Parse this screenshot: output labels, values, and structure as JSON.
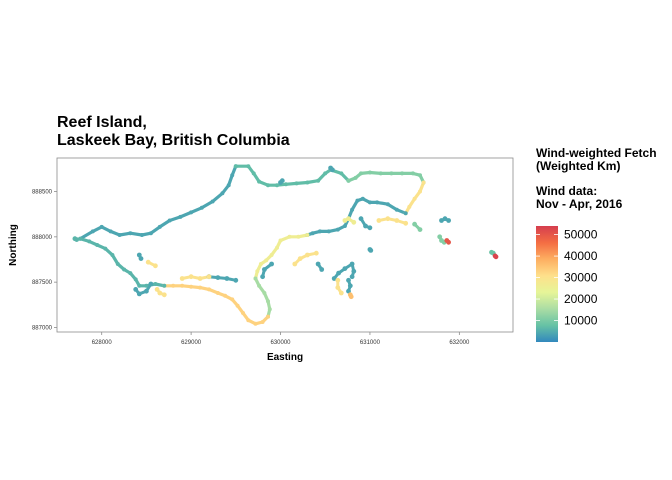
{
  "chart_data": {
    "type": "scatter",
    "title_line1": "Reef Island,",
    "title_line2": "Laskeek Bay, British Columbia",
    "xlabel": "Easting",
    "ylabel": "Northing",
    "xlim": [
      627500,
      632600
    ],
    "ylim": [
      886950,
      888870
    ],
    "xticks": [
      {
        "value": 628000,
        "label": "628000"
      },
      {
        "value": 629000,
        "label": "629000"
      },
      {
        "value": 630000,
        "label": "630000"
      },
      {
        "value": 631000,
        "label": "631000"
      },
      {
        "value": 632000,
        "label": "632000"
      }
    ],
    "yticks": [
      {
        "value": 887000,
        "label": "887000"
      },
      {
        "value": 887500,
        "label": "887500"
      },
      {
        "value": 888000,
        "label": "888000"
      },
      {
        "value": 888500,
        "label": "888500"
      }
    ],
    "grid": false,
    "legend_position": "right",
    "legend": {
      "title_line1": "Wind-weighted Fetch",
      "title_line2": "(Weighted Km)",
      "title_line3": "Wind data:",
      "title_line4": "Nov - Apr, 2016",
      "min": 0,
      "max": 54000,
      "breaks": [
        {
          "value": 10000,
          "label": "10000"
        },
        {
          "value": 20000,
          "label": "20000"
        },
        {
          "value": 30000,
          "label": "30000"
        },
        {
          "value": 40000,
          "label": "40000"
        },
        {
          "value": 50000,
          "label": "50000"
        }
      ],
      "colors": [
        "#3288bd",
        "#66c2a5",
        "#abdda4",
        "#e6f598",
        "#fee08b",
        "#fdae61",
        "#f46d43",
        "#d53e4f"
      ]
    },
    "series": [
      {
        "segments": [
          {
            "fetch": 4000,
            "points": [
              [
                627760,
                887980
              ],
              [
                627900,
                888060
              ],
              [
                628000,
                888110
              ],
              [
                628100,
                888060
              ],
              [
                628200,
                888020
              ],
              [
                628320,
                888040
              ],
              [
                628450,
                888020
              ],
              [
                628550,
                888040
              ],
              [
                628650,
                888110
              ],
              [
                628760,
                888180
              ],
              [
                628880,
                888220
              ],
              [
                629000,
                888270
              ],
              [
                629120,
                888320
              ],
              [
                629240,
                888390
              ],
              [
                629350,
                888480
              ],
              [
                629420,
                888570
              ],
              [
                629460,
                888680
              ],
              [
                629500,
                888780
              ]
            ]
          },
          {
            "fetch": 7000,
            "points": [
              [
                629500,
                888780
              ],
              [
                629640,
                888780
              ],
              [
                629700,
                888700
              ],
              [
                629760,
                888610
              ],
              [
                629860,
                888570
              ],
              [
                629960,
                888570
              ],
              [
                630060,
                888580
              ],
              [
                630180,
                888590
              ],
              [
                630300,
                888600
              ],
              [
                630420,
                888620
              ],
              [
                630500,
                888700
              ],
              [
                630560,
                888740
              ],
              [
                630680,
                888700
              ],
              [
                630760,
                888620
              ]
            ]
          },
          {
            "fetch": 11000,
            "points": [
              [
                630760,
                888620
              ],
              [
                630840,
                888650
              ],
              [
                630900,
                888700
              ],
              [
                631000,
                888710
              ],
              [
                631120,
                888700
              ],
              [
                631240,
                888700
              ],
              [
                631360,
                888700
              ],
              [
                631480,
                888700
              ],
              [
                631560,
                888680
              ],
              [
                631600,
                888600
              ]
            ]
          },
          {
            "fetch": 30000,
            "points": [
              [
                631600,
                888600
              ],
              [
                631560,
                888500
              ],
              [
                631500,
                888420
              ],
              [
                631440,
                888330
              ],
              [
                631400,
                888260
              ]
            ]
          },
          {
            "fetch": 4000,
            "points": [
              [
                631400,
                888260
              ],
              [
                631300,
                888300
              ],
              [
                631200,
                888360
              ],
              [
                631080,
                888380
              ],
              [
                631000,
                888380
              ],
              [
                630920,
                888420
              ],
              [
                630860,
                888400
              ],
              [
                630800,
                888300
              ],
              [
                630760,
                888200
              ],
              [
                630720,
                888120
              ],
              [
                630640,
                888080
              ],
              [
                630540,
                888060
              ],
              [
                630440,
                888060
              ],
              [
                630360,
                888040
              ],
              [
                630300,
                888020
              ]
            ]
          },
          {
            "fetch": 26000,
            "points": [
              [
                630300,
                888020
              ],
              [
                630200,
                888000
              ],
              [
                630100,
                888000
              ],
              [
                630000,
                887960
              ],
              [
                629960,
                887880
              ],
              [
                629900,
                887800
              ],
              [
                629840,
                887740
              ],
              [
                629780,
                887700
              ],
              [
                629740,
                887620
              ],
              [
                629720,
                887540
              ]
            ]
          },
          {
            "fetch": 15000,
            "points": [
              [
                629720,
                887540
              ],
              [
                629760,
                887460
              ],
              [
                629820,
                887380
              ],
              [
                629860,
                887290
              ],
              [
                629880,
                887200
              ],
              [
                629860,
                887120
              ]
            ]
          },
          {
            "fetch": 33000,
            "points": [
              [
                629860,
                887120
              ],
              [
                629800,
                887060
              ],
              [
                629720,
                887040
              ],
              [
                629640,
                887080
              ],
              [
                629580,
                887160
              ],
              [
                629520,
                887240
              ],
              [
                629460,
                887310
              ],
              [
                629380,
                887350
              ],
              [
                629300,
                887380
              ],
              [
                629200,
                887420
              ],
              [
                629100,
                887440
              ],
              [
                629000,
                887450
              ],
              [
                628900,
                887460
              ],
              [
                628800,
                887460
              ],
              [
                628700,
                887460
              ]
            ]
          },
          {
            "fetch": 6000,
            "points": [
              [
                628700,
                887460
              ],
              [
                628600,
                887480
              ],
              [
                628500,
                887460
              ],
              [
                628420,
                887460
              ],
              [
                628380,
                887530
              ],
              [
                628320,
                887600
              ],
              [
                628250,
                887640
              ],
              [
                628180,
                887700
              ],
              [
                628120,
                887800
              ],
              [
                628040,
                887870
              ],
              [
                627950,
                887910
              ],
              [
                627860,
                887950
              ],
              [
                627760,
                887980
              ]
            ]
          }
        ]
      }
    ],
    "islets": [
      {
        "fetch": 4000,
        "points": [
          [
            629200,
            887560
          ],
          [
            629300,
            887550
          ],
          [
            629400,
            887540
          ],
          [
            629500,
            887520
          ]
        ]
      },
      {
        "fetch": 30000,
        "points": [
          [
            628900,
            887540
          ],
          [
            629000,
            887560
          ],
          [
            629100,
            887540
          ],
          [
            629200,
            887560
          ]
        ]
      },
      {
        "fetch": 4000,
        "points": [
          [
            628550,
            887480
          ],
          [
            628500,
            887400
          ],
          [
            628420,
            887370
          ],
          [
            628380,
            887420
          ]
        ]
      },
      {
        "fetch": 30000,
        "points": [
          [
            628620,
            887420
          ],
          [
            628650,
            887380
          ],
          [
            628700,
            887360
          ]
        ]
      },
      {
        "fetch": 4000,
        "points": [
          [
            629800,
            887560
          ],
          [
            629820,
            887640
          ],
          [
            629900,
            887700
          ]
        ]
      },
      {
        "fetch": 30000,
        "points": [
          [
            630160,
            887700
          ],
          [
            630220,
            887760
          ],
          [
            630300,
            887800
          ],
          [
            630400,
            887820
          ]
        ]
      },
      {
        "fetch": 4000,
        "points": [
          [
            630420,
            887700
          ],
          [
            630460,
            887640
          ]
        ]
      },
      {
        "fetch": 4000,
        "points": [
          [
            630600,
            887540
          ],
          [
            630650,
            887600
          ],
          [
            630720,
            887650
          ],
          [
            630800,
            887700
          ],
          [
            630820,
            887620
          ],
          [
            630800,
            887560
          ]
        ]
      },
      {
        "fetch": 30000,
        "points": [
          [
            630640,
            887520
          ],
          [
            630640,
            887440
          ],
          [
            630680,
            887380
          ]
        ]
      },
      {
        "fetch": 4000,
        "points": [
          [
            630760,
            887520
          ],
          [
            630780,
            887460
          ],
          [
            630760,
            887400
          ]
        ]
      },
      {
        "fetch": 36000,
        "points": [
          [
            630780,
            887360
          ],
          [
            630790,
            887340
          ]
        ]
      },
      {
        "fetch": 4000,
        "points": [
          [
            631000,
            887860
          ],
          [
            631010,
            887850
          ]
        ]
      },
      {
        "fetch": 26000,
        "points": [
          [
            630720,
            888180
          ],
          [
            630760,
            888200
          ],
          [
            630820,
            888160
          ]
        ]
      },
      {
        "fetch": 4000,
        "points": [
          [
            630900,
            888200
          ],
          [
            630950,
            888120
          ],
          [
            631000,
            888100
          ]
        ]
      },
      {
        "fetch": 30000,
        "points": [
          [
            631100,
            888180
          ],
          [
            631200,
            888200
          ],
          [
            631300,
            888180
          ],
          [
            631400,
            888150
          ]
        ]
      },
      {
        "fetch": 11000,
        "points": [
          [
            631500,
            888140
          ],
          [
            631560,
            888080
          ]
        ]
      },
      {
        "fetch": 4000,
        "points": [
          [
            631800,
            888180
          ],
          [
            631840,
            888200
          ],
          [
            631880,
            888180
          ]
        ]
      },
      {
        "fetch": 11000,
        "points": [
          [
            631780,
            888000
          ],
          [
            631800,
            887960
          ],
          [
            631830,
            887940
          ]
        ]
      },
      {
        "fetch": 50000,
        "points": [
          [
            631860,
            887960
          ],
          [
            631880,
            887940
          ]
        ]
      },
      {
        "fetch": 8000,
        "points": [
          [
            632360,
            887830
          ],
          [
            632380,
            887820
          ]
        ]
      },
      {
        "fetch": 53000,
        "points": [
          [
            632400,
            887790
          ],
          [
            632410,
            887780
          ]
        ]
      },
      {
        "fetch": 6000,
        "points": [
          [
            627700,
            887980
          ],
          [
            627720,
            887970
          ]
        ]
      },
      {
        "fetch": 4000,
        "points": [
          [
            628420,
            887800
          ],
          [
            628440,
            887760
          ]
        ]
      },
      {
        "fetch": 30000,
        "points": [
          [
            628520,
            887720
          ],
          [
            628600,
            887680
          ]
        ]
      },
      {
        "fetch": 4000,
        "points": [
          [
            630000,
            888600
          ],
          [
            630020,
            888620
          ]
        ]
      },
      {
        "fetch": 4000,
        "points": [
          [
            630560,
            888760
          ],
          [
            630580,
            888740
          ]
        ]
      }
    ]
  }
}
